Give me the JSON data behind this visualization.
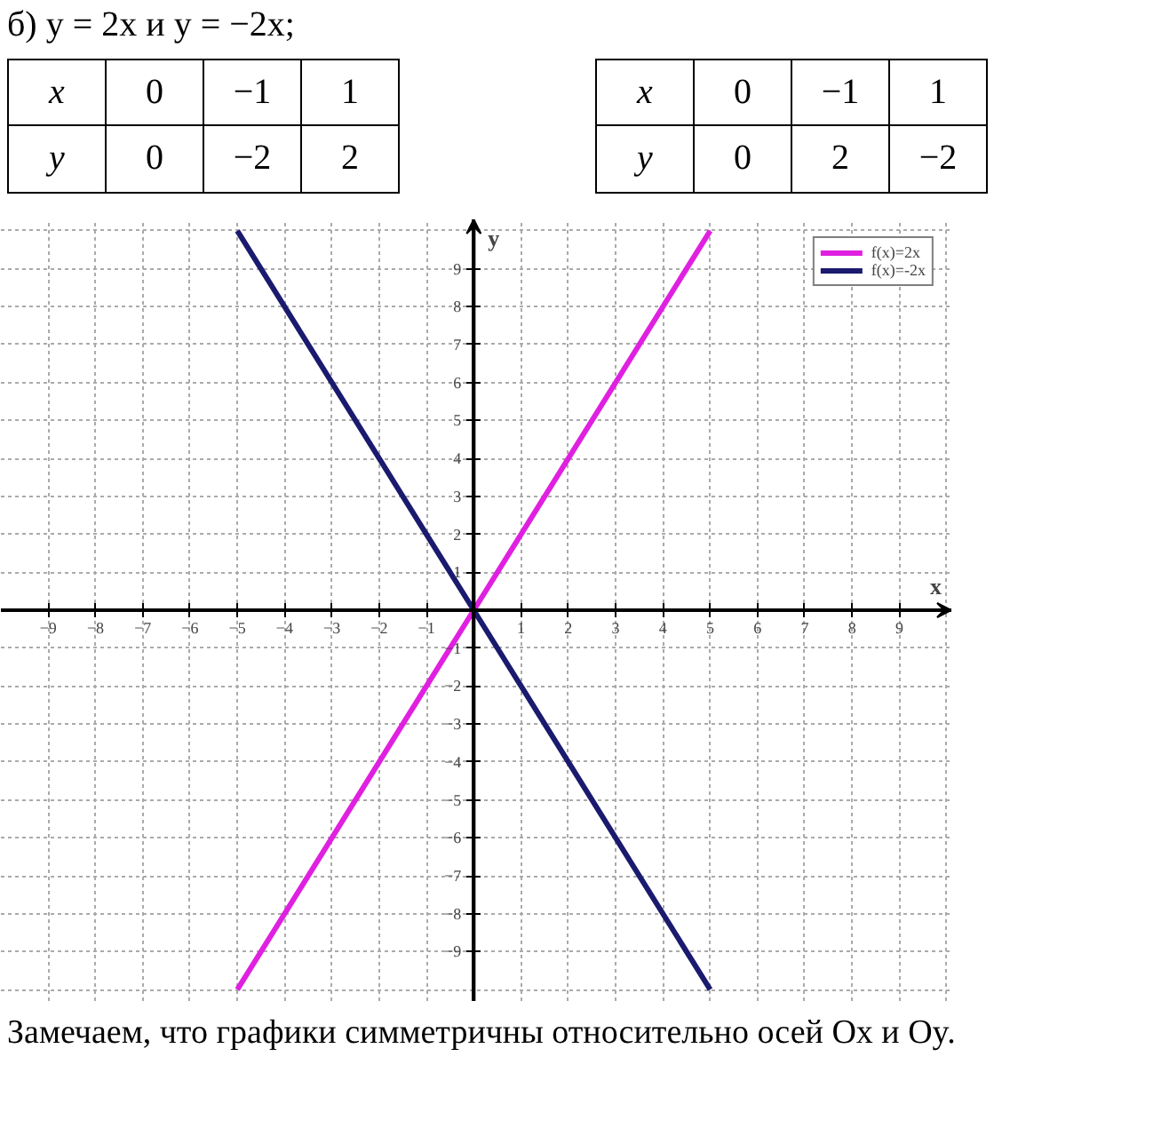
{
  "chart_data": {
    "type": "line",
    "title": "б) y = 2x  и  y = −2x;",
    "xlabel": "x",
    "ylabel": "y",
    "annotations": [
      "x",
      "0",
      "−1",
      "1",
      "y",
      "0",
      "−2",
      "2",
      "x",
      "0",
      "−1",
      "1",
      "y",
      "0",
      "2",
      "−2",
      "Замечаем, что графики симметричны относительно осей Ox и Oy."
    ],
    "series": [
      {
        "name": "f(x)=2x",
        "color": "#e020e0",
        "x": [
          -5,
          -1,
          0,
          1,
          5
        ],
        "values": [
          -10,
          -2,
          0,
          2,
          10
        ]
      },
      {
        "name": "f(x)=-2x",
        "color": "#1a1a6e",
        "x": [
          -5,
          -1,
          0,
          1,
          5
        ],
        "values": [
          10,
          2,
          0,
          -2,
          -10
        ]
      }
    ],
    "xlim": [
      -10,
      10.1
    ],
    "ylim": [
      -10.3,
      10.3
    ],
    "xticks": [
      -9,
      -8,
      -7,
      -6,
      -5,
      -4,
      -3,
      -2,
      -1,
      1,
      2,
      3,
      4,
      5,
      6,
      7,
      8,
      9
    ],
    "yticks": [
      -9,
      -8,
      -7,
      -6,
      -5,
      -4,
      -3,
      -2,
      -1,
      1,
      2,
      3,
      4,
      5,
      6,
      7,
      8,
      9
    ],
    "grid": true,
    "legend": "top right",
    "marker": "none",
    "line_style": "solid"
  }
}
